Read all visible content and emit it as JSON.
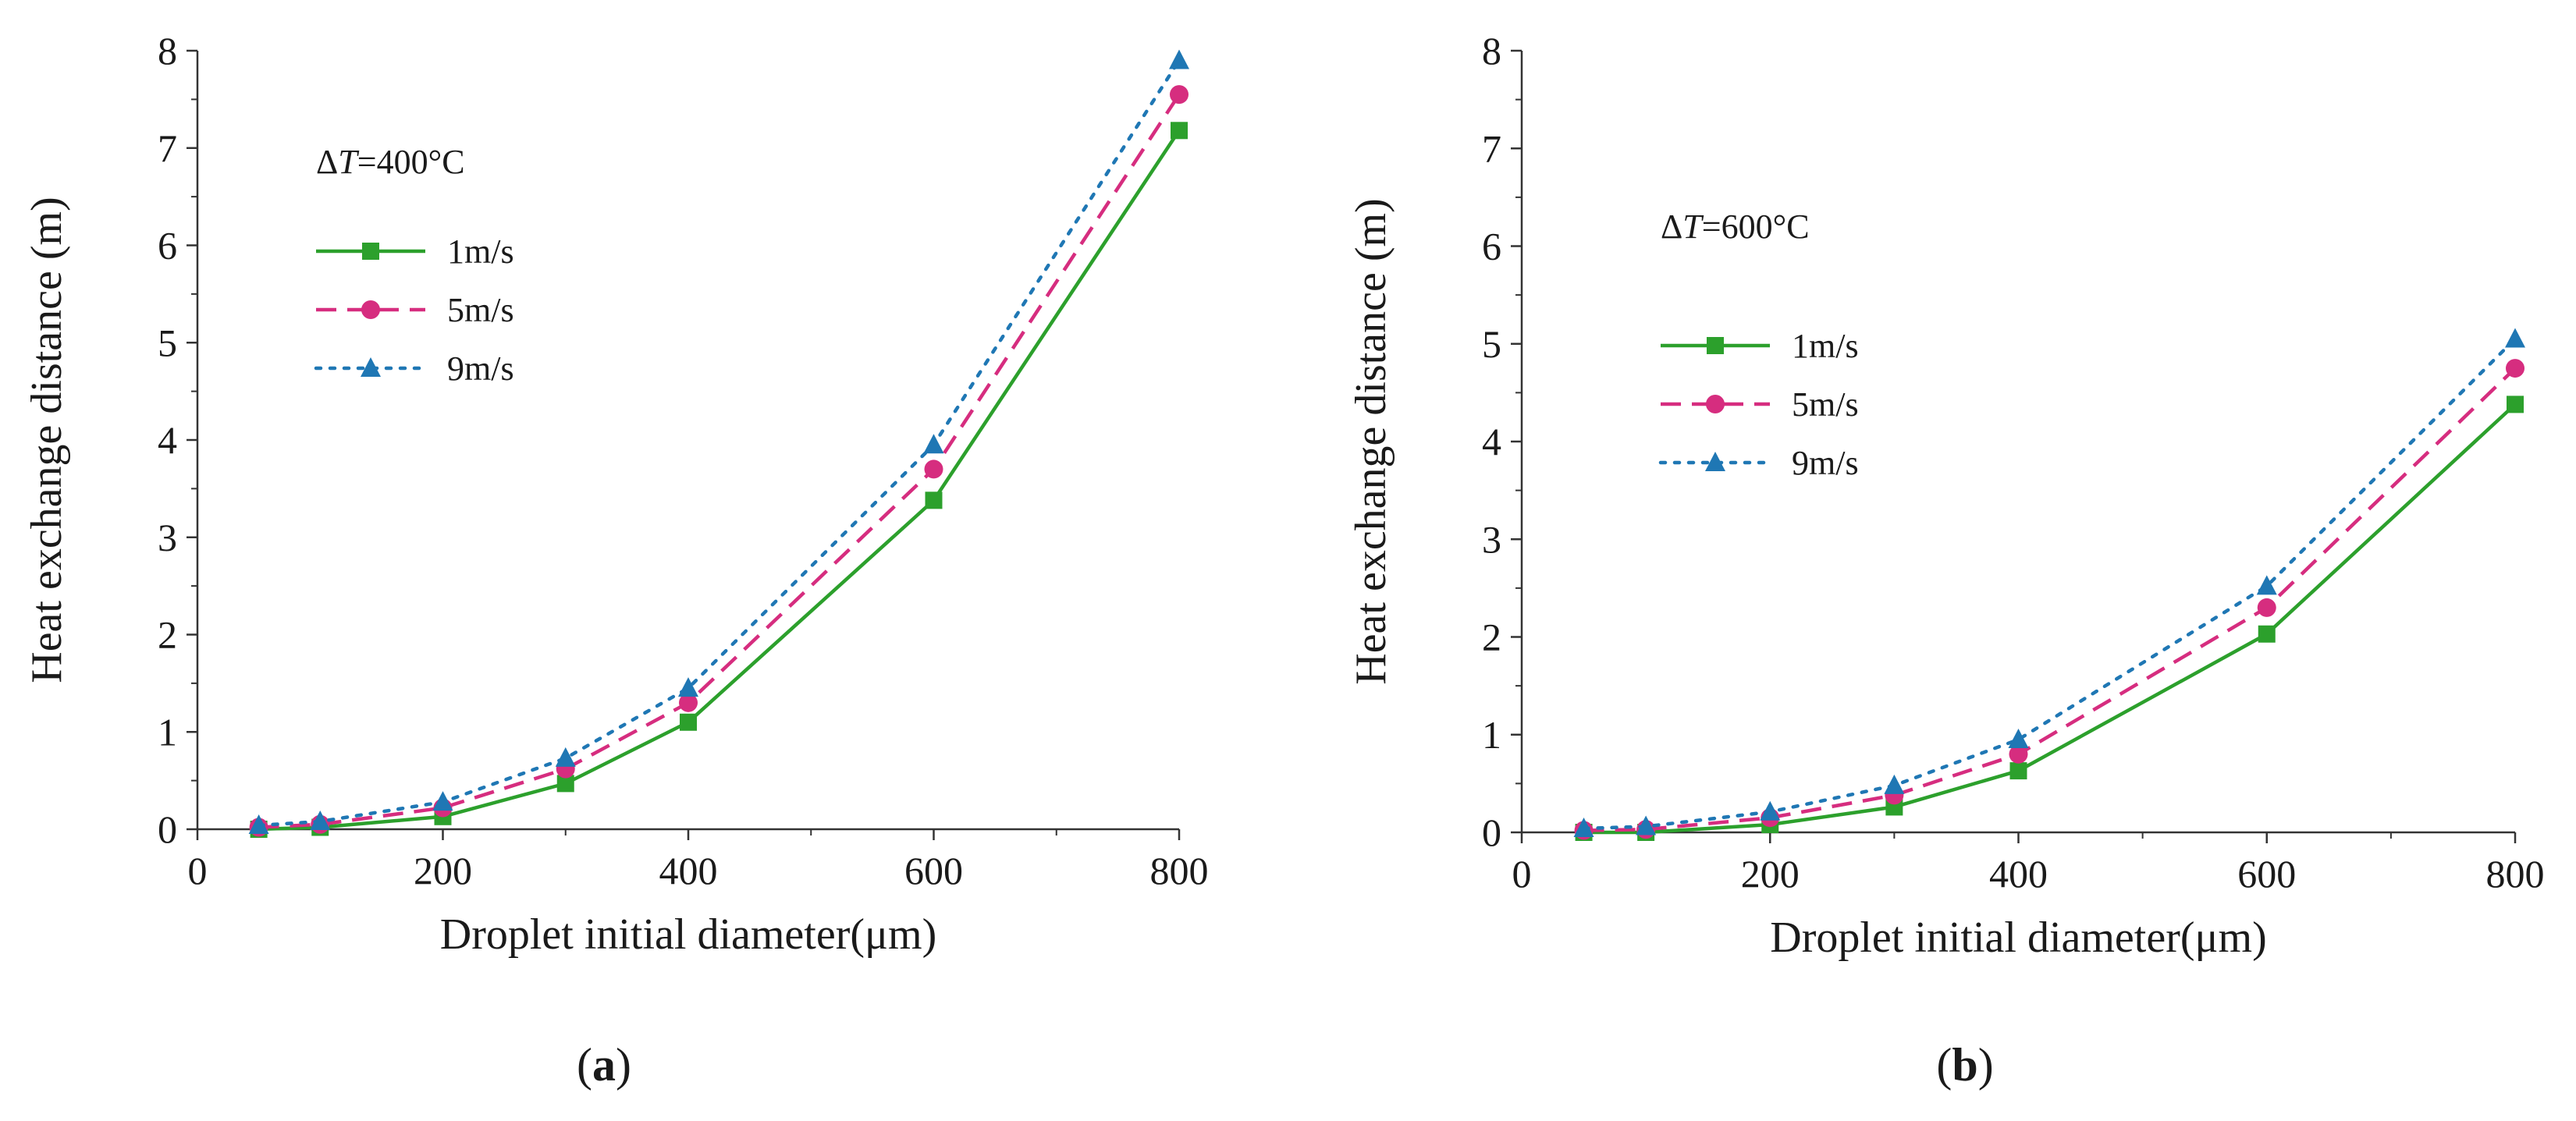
{
  "colors": {
    "series_1": "#2ca02c",
    "series_5": "#d62d7f",
    "series_9": "#1f77b4",
    "axis": "#333333"
  },
  "chart_data": [
    {
      "type": "line",
      "panel_label": "(a)",
      "panel_letter": "a",
      "annotation": {
        "delta": "Δ",
        "var": "T",
        "rest": "=400°C"
      },
      "xlabel": "Droplet initial diameter(μm)",
      "ylabel": "Heat exchange distance (m)",
      "xlim": [
        0,
        800
      ],
      "ylim": [
        0,
        8
      ],
      "xticks": [
        0,
        200,
        400,
        600,
        800
      ],
      "yticks": [
        0,
        1,
        2,
        3,
        4,
        5,
        6,
        7,
        8
      ],
      "x": [
        50,
        100,
        200,
        300,
        400,
        600,
        800
      ],
      "series": [
        {
          "name": "1m/s",
          "marker": "square",
          "dash": "solid",
          "values": [
            0.0,
            0.02,
            0.13,
            0.47,
            1.1,
            3.38,
            7.18
          ]
        },
        {
          "name": "5m/s",
          "marker": "circle",
          "dash": "dashed",
          "values": [
            0.02,
            0.05,
            0.22,
            0.62,
            1.3,
            3.7,
            7.55
          ]
        },
        {
          "name": "9m/s",
          "marker": "triangle",
          "dash": "dotted",
          "values": [
            0.04,
            0.08,
            0.28,
            0.73,
            1.45,
            3.95,
            7.9
          ]
        }
      ]
    },
    {
      "type": "line",
      "panel_label": "(b)",
      "panel_letter": "b",
      "annotation": {
        "delta": "Δ",
        "var": "T",
        "rest": "=600°C"
      },
      "xlabel": "Droplet initial diameter(μm)",
      "ylabel": "Heat exchange distance (m)",
      "xlim": [
        0,
        800
      ],
      "ylim": [
        0,
        8
      ],
      "xticks": [
        0,
        200,
        400,
        600,
        800
      ],
      "yticks": [
        0,
        1,
        2,
        3,
        4,
        5,
        6,
        7,
        8
      ],
      "x": [
        50,
        100,
        200,
        300,
        400,
        600,
        800
      ],
      "series": [
        {
          "name": "1m/s",
          "marker": "square",
          "dash": "solid",
          "values": [
            0.0,
            0.0,
            0.08,
            0.26,
            0.63,
            2.03,
            4.38
          ]
        },
        {
          "name": "5m/s",
          "marker": "circle",
          "dash": "dashed",
          "values": [
            0.02,
            0.03,
            0.15,
            0.38,
            0.8,
            2.3,
            4.75
          ]
        },
        {
          "name": "9m/s",
          "marker": "triangle",
          "dash": "dotted",
          "values": [
            0.04,
            0.06,
            0.21,
            0.48,
            0.95,
            2.52,
            5.05
          ]
        }
      ]
    }
  ]
}
